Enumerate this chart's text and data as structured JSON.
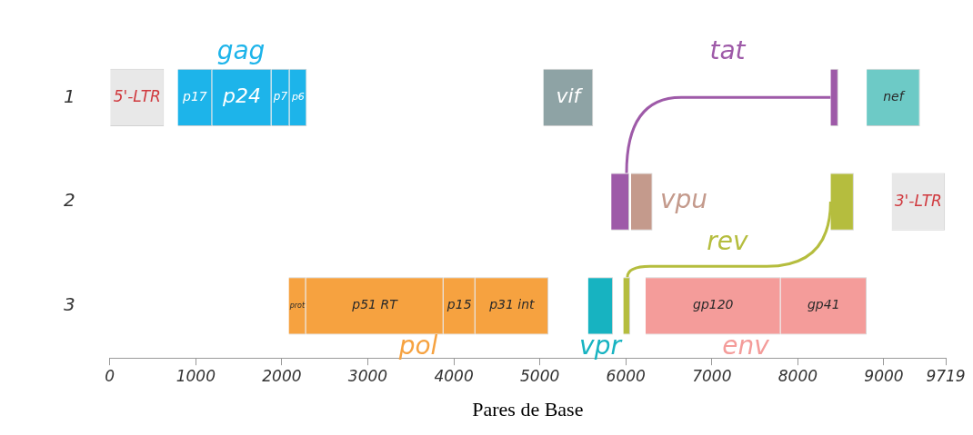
{
  "chart_data": {
    "type": "bar",
    "orientation": "horizontal",
    "categories": [
      "1",
      "2",
      "3"
    ],
    "xlabel": "Pares de Base",
    "xlim": [
      0,
      9719
    ],
    "xticks": [
      0,
      1000,
      2000,
      3000,
      4000,
      5000,
      6000,
      7000,
      8000,
      9000,
      9719
    ],
    "grid": false,
    "legend": false,
    "series": [
      {
        "name": "5'-LTR",
        "color": "#e8e8e8",
        "values": [
          630,
          null,
          null
        ],
        "base": [
          0,
          null,
          null
        ]
      },
      {
        "name": "p17",
        "color": "#1db4ea",
        "values": [
          400,
          null,
          null
        ],
        "base": [
          790,
          null,
          null
        ]
      },
      {
        "name": "p24",
        "color": "#1db4ea",
        "values": [
          690,
          null,
          null
        ],
        "base": [
          1190,
          null,
          null
        ]
      },
      {
        "name": "p7",
        "color": "#1db4ea",
        "values": [
          210,
          null,
          null
        ],
        "base": [
          1880,
          null,
          null
        ]
      },
      {
        "name": "p6",
        "color": "#1db4ea",
        "values": [
          200,
          null,
          null
        ],
        "base": [
          2090,
          null,
          null
        ]
      },
      {
        "name": "vif",
        "color": "#8ea3a5",
        "values": [
          580,
          null,
          null
        ],
        "base": [
          5040,
          null,
          null
        ]
      },
      {
        "color": "#9e5aa8",
        "values": [
          90,
          210,
          null
        ],
        "base": [
          8380,
          5830,
          null
        ]
      },
      {
        "name": "nef",
        "color": "#6dcac6",
        "values": [
          620,
          null,
          null
        ],
        "base": [
          8800,
          null,
          null
        ]
      },
      {
        "color": "#c49a8c",
        "values": [
          null,
          250,
          null
        ],
        "base": [
          null,
          6060,
          null
        ]
      },
      {
        "color": "#b5bd3e",
        "values": [
          null,
          270,
          80
        ],
        "base": [
          null,
          8380,
          5970
        ]
      },
      {
        "name": "3'-LTR",
        "color": "#e8e8e8",
        "values": [
          null,
          620,
          null
        ],
        "base": [
          null,
          9090,
          null
        ]
      },
      {
        "name": "prot",
        "color": "#f6a240",
        "values": [
          null,
          null,
          200
        ],
        "base": [
          null,
          null,
          2080
        ]
      },
      {
        "name": "p51 RT",
        "color": "#f6a240",
        "values": [
          null,
          null,
          1600
        ],
        "base": [
          null,
          null,
          2280
        ]
      },
      {
        "name": "p15",
        "color": "#f6a240",
        "values": [
          null,
          null,
          370
        ],
        "base": [
          null,
          null,
          3880
        ]
      },
      {
        "name": "p31 int",
        "color": "#f6a240",
        "values": [
          null,
          null,
          850
        ],
        "base": [
          null,
          null,
          4250
        ]
      },
      {
        "color": "#17b3c1",
        "values": [
          null,
          null,
          290
        ],
        "base": [
          null,
          null,
          5560
        ]
      },
      {
        "name": "gp120",
        "color": "#f49c9a",
        "values": [
          null,
          null,
          1570
        ],
        "base": [
          null,
          null,
          6230
        ]
      },
      {
        "name": "gp41",
        "color": "#f49c9a",
        "values": [
          null,
          null,
          1000
        ],
        "base": [
          null,
          null,
          7800
        ]
      }
    ],
    "annotations": [
      "gag",
      "tat",
      "vpu",
      "rev",
      "pol",
      "vpr",
      "env"
    ]
  }
}
